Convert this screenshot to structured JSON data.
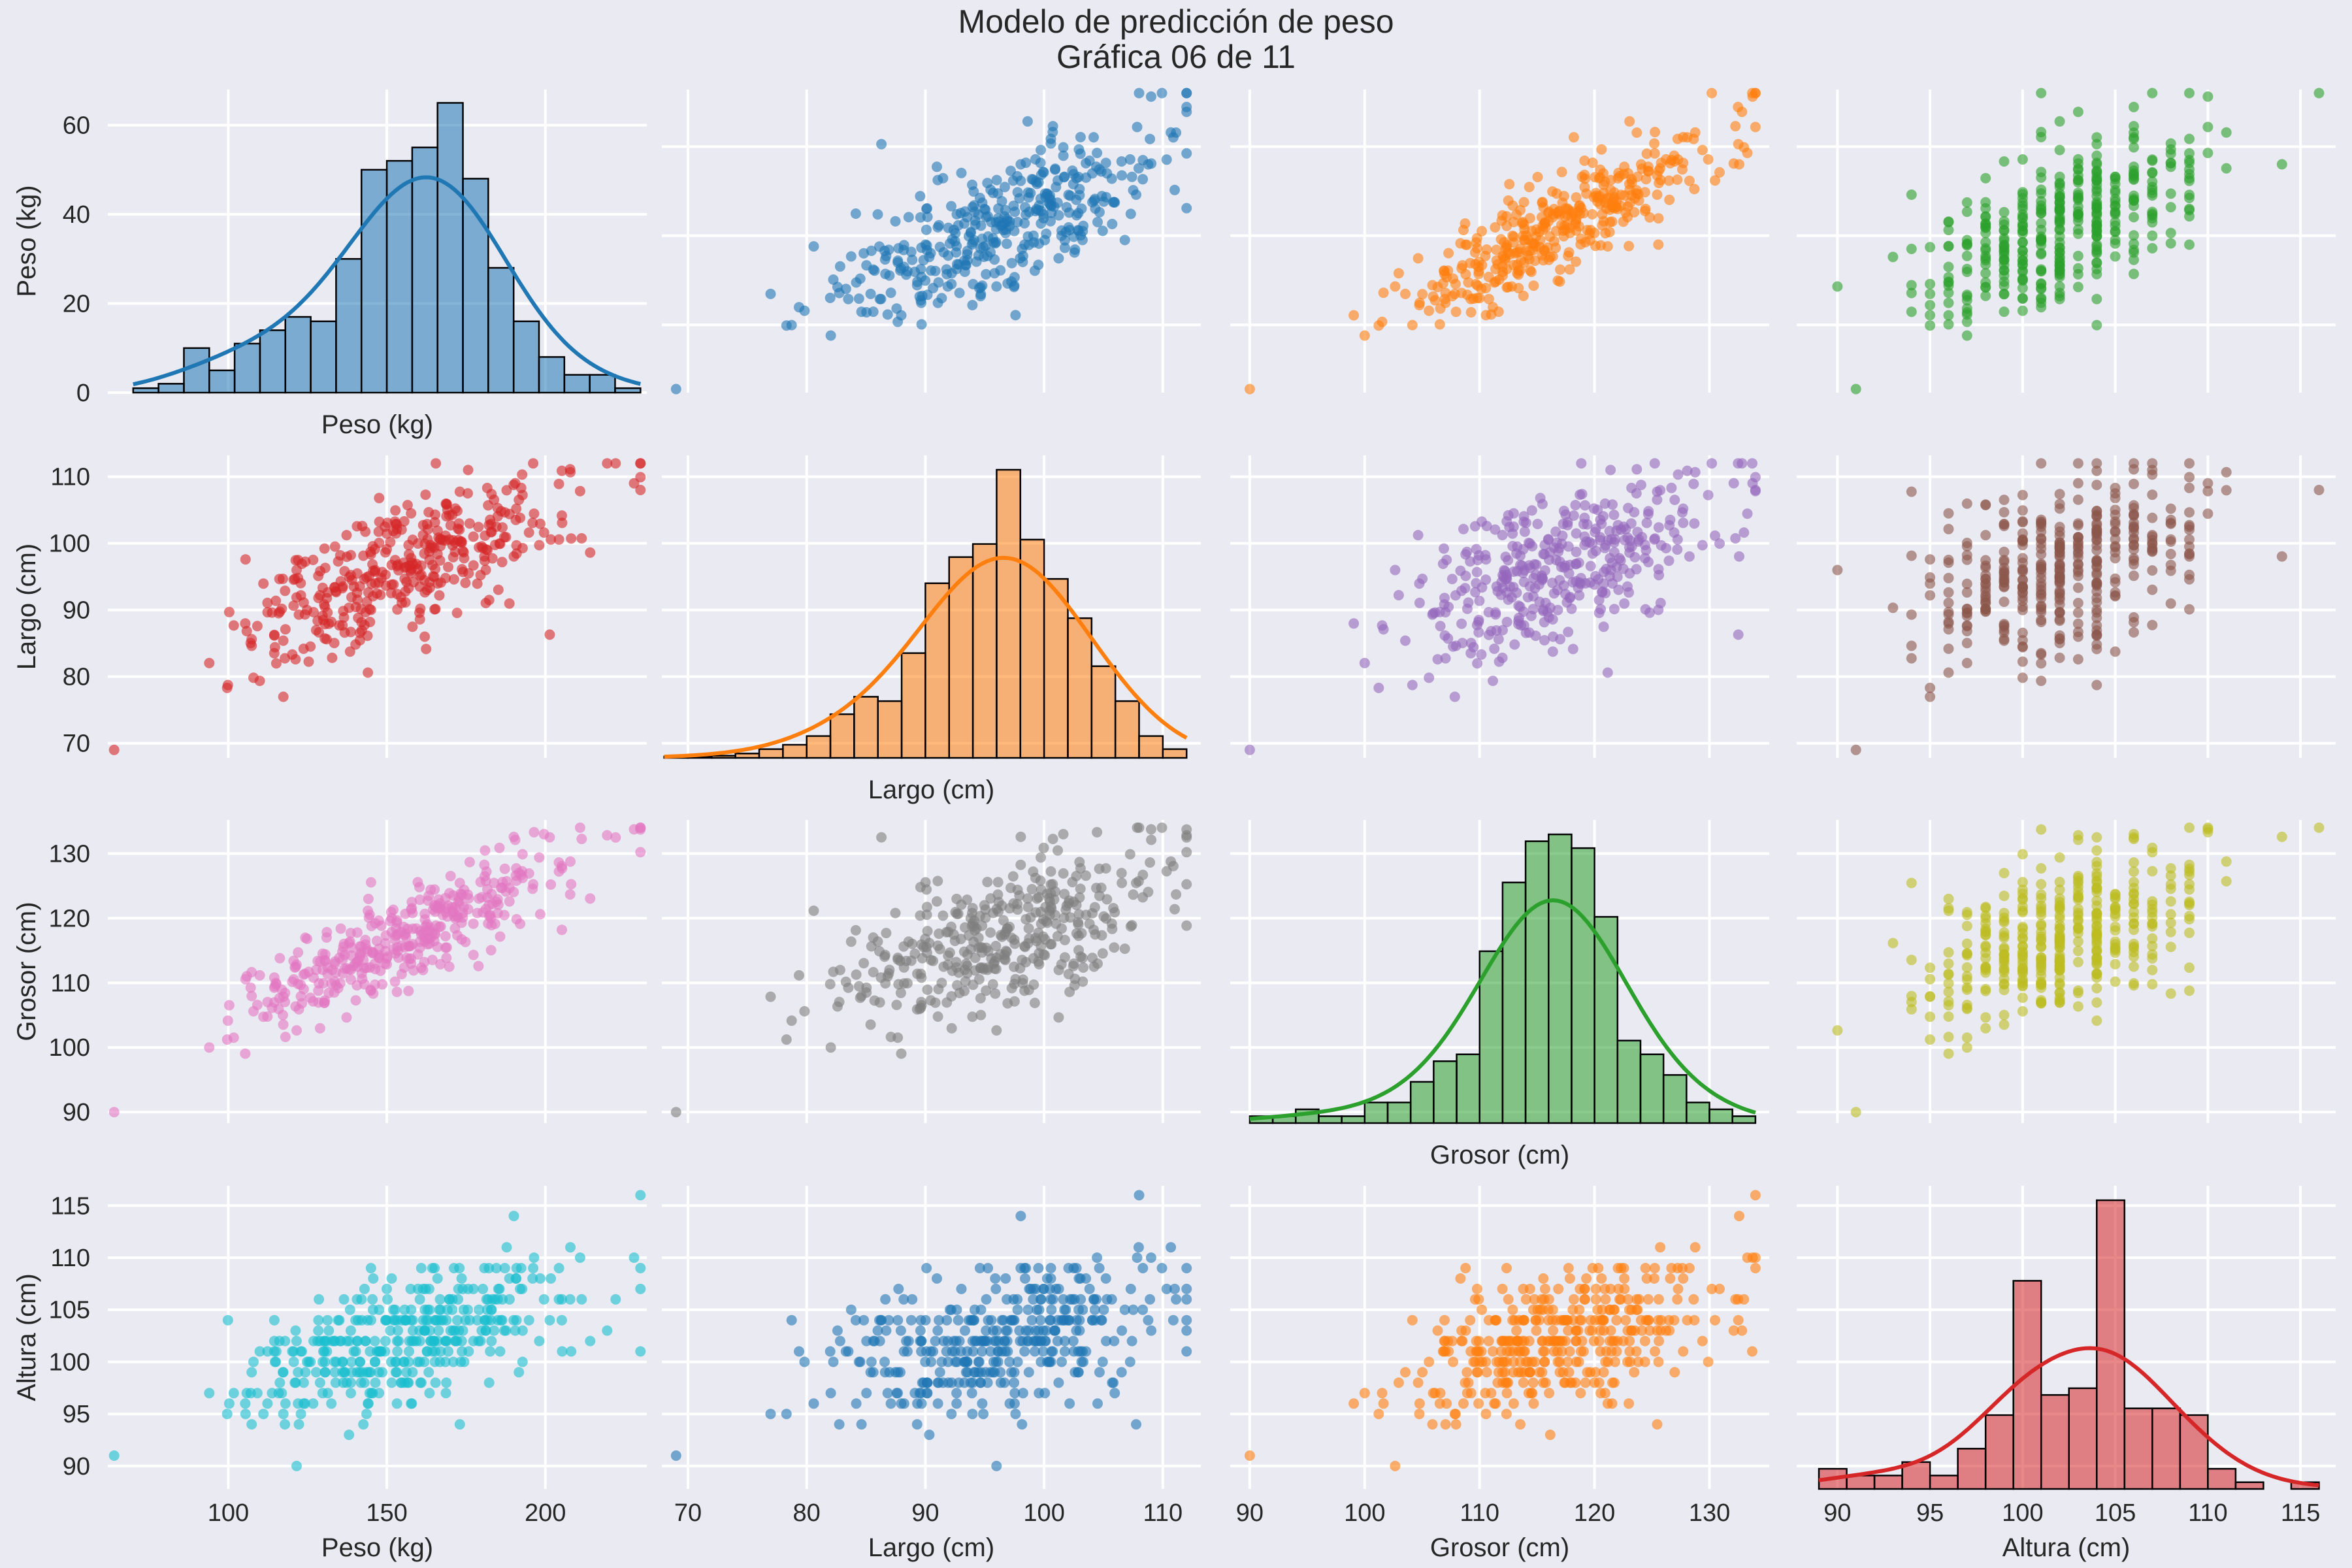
{
  "figure": {
    "title_line1": "Modelo de predicción de peso",
    "title_line2": "Gráfica 06 de 11"
  },
  "chart_data": {
    "type": "pairplot",
    "variables": [
      {
        "key": "peso",
        "label": "Peso (kg)",
        "range": [
          62,
          232
        ],
        "ticks": [
          100,
          150,
          200
        ]
      },
      {
        "key": "largo",
        "label": "Largo (cm)",
        "range": [
          67.8,
          113.2
        ],
        "ticks": [
          70,
          80,
          90,
          100,
          110
        ]
      },
      {
        "key": "grosor",
        "label": "Grosor (cm)",
        "range": [
          88.3,
          135.2
        ],
        "ticks": [
          90,
          100,
          110,
          120,
          130
        ]
      },
      {
        "key": "altura",
        "label": "Altura (cm)",
        "range": [
          87.8,
          116.9
        ],
        "ticks": [
          90,
          95,
          100,
          105,
          110,
          115
        ]
      }
    ],
    "diagonal_y_ticks": {
      "peso": [
        0,
        20,
        40,
        60
      ]
    },
    "diagonal_y_range": [
      0,
      68
    ],
    "grid": true,
    "cell_colors": [
      [
        "#1f77b4",
        "#1f77b4",
        "#ff7f0e",
        "#2ca02c"
      ],
      [
        "#d62728",
        "#ff7f0e",
        "#9467bd",
        "#8c564b"
      ],
      [
        "#e377c2",
        "#7f7f7f",
        "#2ca02c",
        "#bcbd22"
      ],
      [
        "#17becf",
        "#1f77b4",
        "#ff7f0e",
        "#d62728"
      ]
    ],
    "histograms": {
      "peso": {
        "bin_edges": [
          70,
          78,
          86,
          94,
          102,
          110,
          118,
          126,
          134,
          142,
          150,
          158,
          166,
          174,
          182,
          190,
          198,
          206,
          214,
          222,
          230
        ],
        "counts": [
          1,
          2,
          10,
          5,
          11,
          14,
          17,
          16,
          30,
          50,
          52,
          55,
          65,
          48,
          28,
          16,
          8,
          4,
          4,
          1
        ]
      },
      "largo": {
        "bin_edges": [
          68,
          70,
          72,
          74,
          76,
          78,
          80,
          82,
          84,
          86,
          88,
          90,
          92,
          94,
          96,
          98,
          100,
          102,
          104,
          106,
          108,
          110,
          112
        ],
        "counts": [
          0.3,
          0.3,
          0.5,
          1,
          2,
          3,
          5,
          10,
          14,
          13,
          24,
          40,
          46,
          49,
          66,
          50,
          41,
          32,
          21,
          13,
          5,
          2
        ]
      },
      "grosor": {
        "bin_edges": [
          90,
          92,
          94,
          96,
          98,
          100,
          102,
          104,
          106,
          108,
          110,
          112,
          114,
          116,
          118,
          120,
          122,
          124,
          126,
          128,
          130,
          132,
          134
        ],
        "counts": [
          1,
          1,
          2,
          1,
          1,
          3,
          3,
          6,
          9,
          10,
          25,
          35,
          41,
          42,
          40,
          30,
          12,
          10,
          7,
          3,
          2,
          1
        ]
      },
      "altura": {
        "bin_edges": [
          89,
          90.5,
          92,
          93.5,
          95,
          96.5,
          98,
          99.5,
          101,
          102.5,
          104,
          105.5,
          107,
          108.5,
          110,
          111.5,
          113,
          114.5,
          116
        ],
        "counts": [
          3,
          2,
          2,
          4,
          2,
          6,
          11,
          31,
          14,
          15,
          43,
          12,
          12,
          11,
          3,
          1,
          0,
          1
        ]
      }
    }
  }
}
